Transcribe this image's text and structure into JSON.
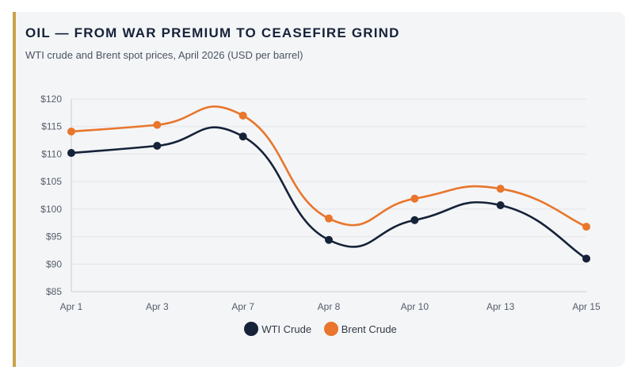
{
  "colors": {
    "accent_bar": "#c9a24b",
    "wti": "#152238",
    "brent": "#e8762c",
    "grid": "#e3e5ea"
  },
  "header": {
    "title": "OIL — FROM WAR PREMIUM TO CEASEFIRE GRIND",
    "subtitle": "WTI crude and Brent spot prices, April 2026 (USD per barrel)"
  },
  "chart_data": {
    "type": "line",
    "title": "OIL — FROM WAR PREMIUM TO CEASEFIRE GRIND",
    "subtitle": "WTI crude and Brent spot prices, April 2026 (USD per barrel)",
    "categories": [
      "Apr 1",
      "Apr 3",
      "Apr 7",
      "Apr 8",
      "Apr 10",
      "Apr 13",
      "Apr 15"
    ],
    "series": [
      {
        "name": "WTI Crude",
        "color": "#152238",
        "values": [
          110.2,
          111.5,
          113.2,
          94.4,
          98.0,
          100.7,
          91.0
        ]
      },
      {
        "name": "Brent Crude",
        "color": "#e8762c",
        "values": [
          114.1,
          115.3,
          117.0,
          98.3,
          101.9,
          103.7,
          96.8
        ]
      }
    ],
    "ylim": [
      85,
      120
    ],
    "yticks": [
      85,
      90,
      95,
      100,
      105,
      110,
      115,
      120
    ],
    "ytick_labels": [
      "$85",
      "$90",
      "$95",
      "$100",
      "$105",
      "$110",
      "$115",
      "$120"
    ],
    "grid": true,
    "legend": "bottom-center"
  }
}
